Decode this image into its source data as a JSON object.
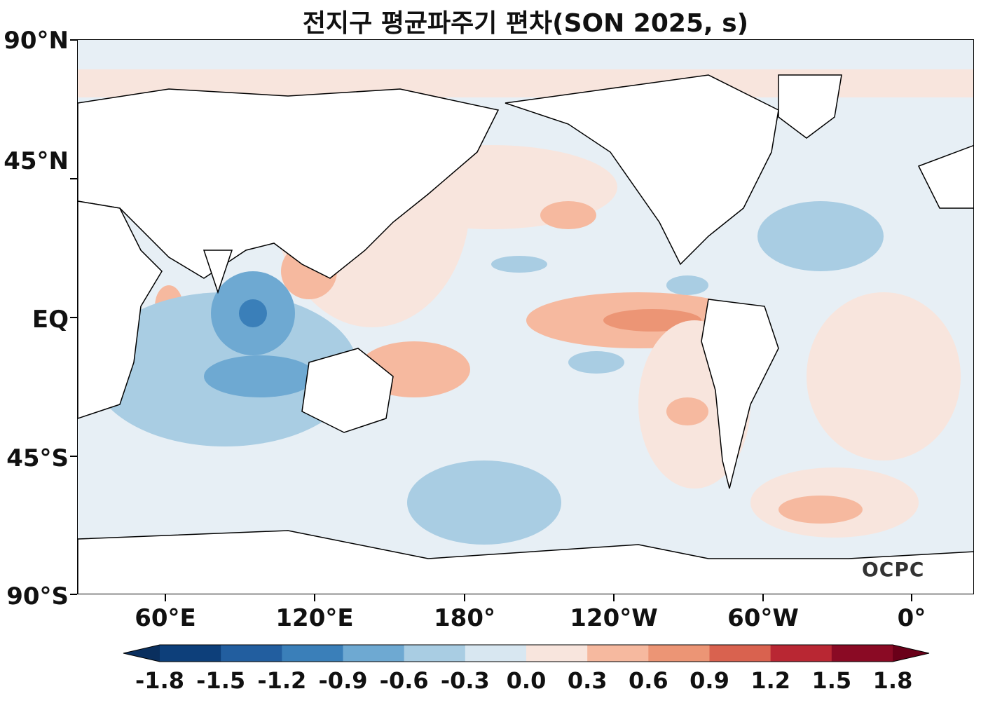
{
  "title": "전지구 평균파주기 편차(SON 2025, s)",
  "logo_text": "OCPC",
  "y_axis_labels": [
    "90°N",
    "45°N",
    "EQ",
    "45°S",
    "90°S"
  ],
  "x_axis_labels": [
    "60°E",
    "120°E",
    "180°",
    "120°W",
    "60°W",
    "0°"
  ],
  "colorbar": {
    "ticks": [
      "-1.8",
      "-1.5",
      "-1.2",
      "-0.9",
      "-0.6",
      "-0.3",
      "0.0",
      "0.3",
      "0.6",
      "0.9",
      "1.2",
      "1.5",
      "1.8"
    ],
    "colors": [
      "#0d3f7a",
      "#225e9f",
      "#3a7fb9",
      "#6ea9d2",
      "#a9cde3",
      "#d8e7f1",
      "#f8e5dd",
      "#f6b99f",
      "#ec9575",
      "#d9624f",
      "#b92733",
      "#8a0a24"
    ],
    "extend_low_color": "#0a2f5e",
    "extend_high_color": "#6a0019"
  },
  "chart_data": {
    "type": "heatmap",
    "title": "전지구 평균파주기 편차(SON 2025, s)",
    "variable": "mean wave period anomaly",
    "units": "s",
    "season": "SON 2025",
    "lon_labels": [
      "60°E",
      "120°E",
      "180°",
      "120°W",
      "60°W",
      "0°"
    ],
    "lat_labels": [
      "90°N",
      "45°N",
      "EQ",
      "45°S",
      "90°S"
    ],
    "colorbar_range": [
      -1.8,
      1.8
    ],
    "colorbar_step": 0.3,
    "notable_features": [
      {
        "region": "eastern tropical Indian Ocean",
        "value": -1.2
      },
      {
        "region": "southern Indian Ocean",
        "value": -0.9
      },
      {
        "region": "eastern equatorial Pacific",
        "value": 0.9
      },
      {
        "region": "western tropical Pacific",
        "value": 0.6
      },
      {
        "region": "southeast Pacific",
        "value": 0.6
      },
      {
        "region": "Southern Ocean south of Pacific",
        "value": -0.6
      }
    ]
  }
}
